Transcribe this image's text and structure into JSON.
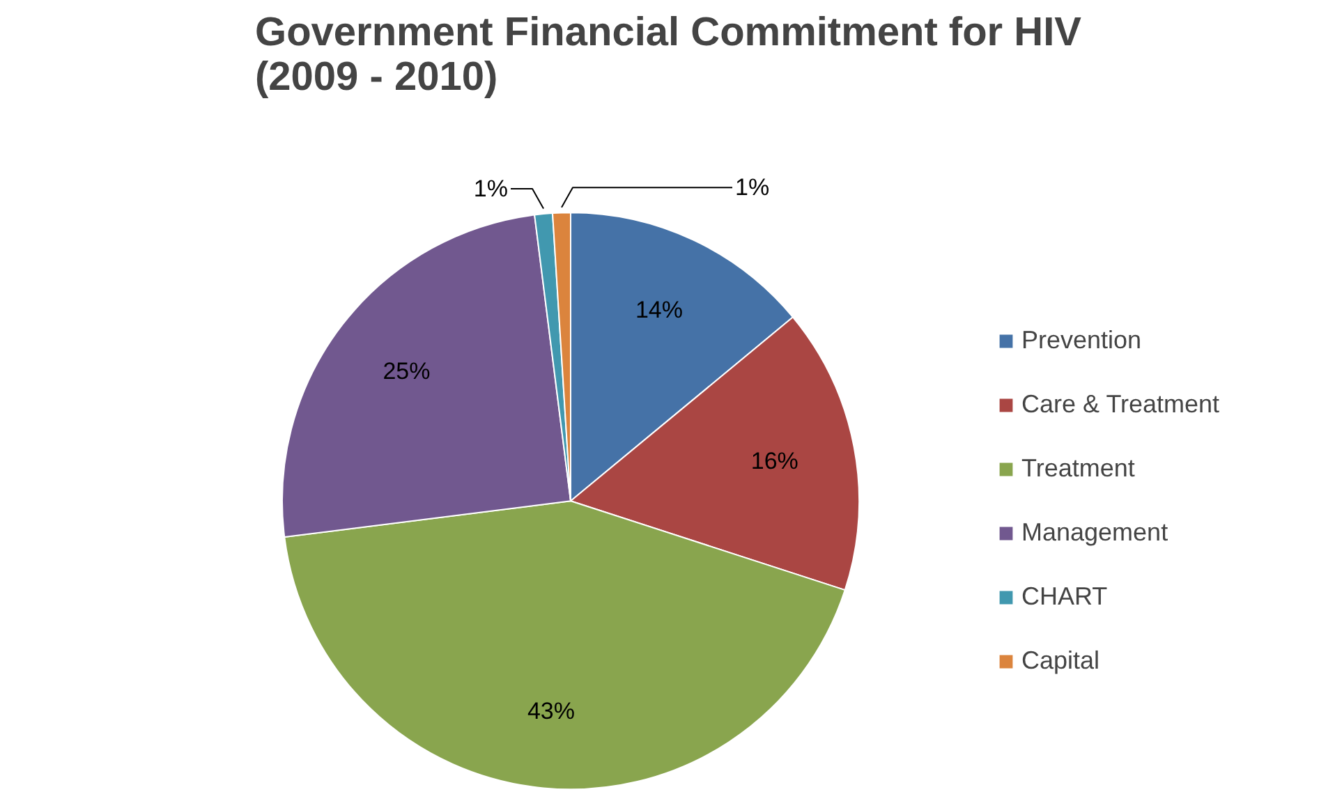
{
  "chart_data": {
    "type": "pie",
    "title": "Government Financial Commitment for HIV\n(2009 - 2010)",
    "categories": [
      "Prevention",
      "Care & Treatment",
      "Treatment",
      "Management",
      "CHART",
      "Capital"
    ],
    "values": [
      14,
      16,
      43,
      25,
      1,
      1
    ],
    "colors": [
      "#4572a7",
      "#aa4643",
      "#89a54e",
      "#71588f",
      "#4198af",
      "#db843d"
    ],
    "value_labels": [
      "14%",
      "16%",
      "43%",
      "25%",
      "1%",
      "1%"
    ],
    "legend": "right"
  }
}
